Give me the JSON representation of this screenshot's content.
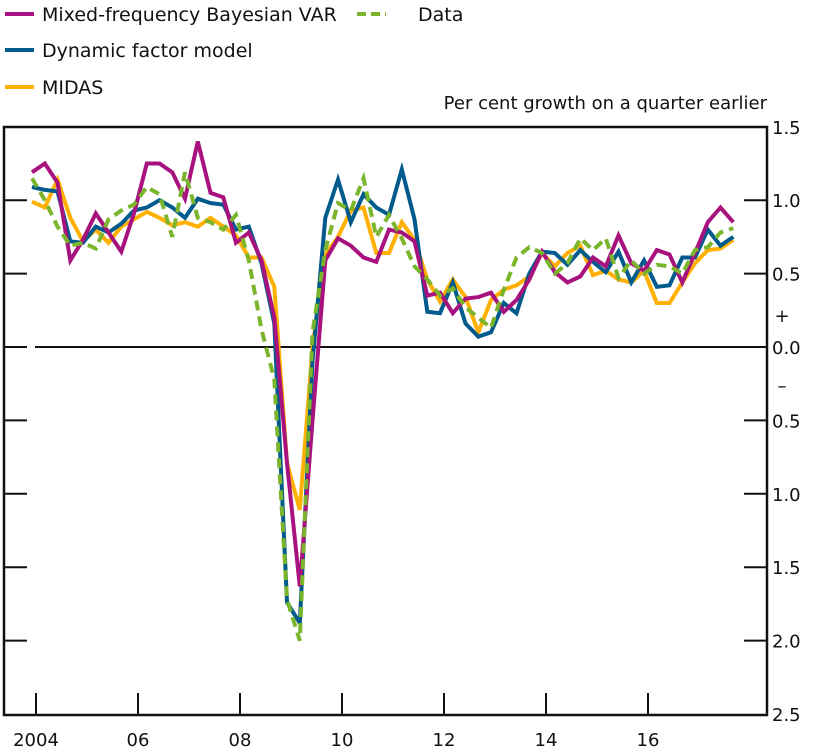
{
  "chart_data": {
    "type": "line",
    "title": "",
    "xlabel": "",
    "ylabel": "Per cent growth on a quarter earlier",
    "ylim": [
      -2.5,
      1.5
    ],
    "grid": false,
    "legend_position": "top-left",
    "x": [
      "2003 Q4",
      "2004 Q1",
      "2004 Q2",
      "2004 Q3",
      "2004 Q4",
      "2005 Q1",
      "2005 Q2",
      "2005 Q3",
      "2005 Q4",
      "2006 Q1",
      "2006 Q2",
      "2006 Q3",
      "2006 Q4",
      "2007 Q1",
      "2007 Q2",
      "2007 Q3",
      "2007 Q4",
      "2008 Q1",
      "2008 Q2",
      "2008 Q3",
      "2008 Q4",
      "2009 Q1",
      "2009 Q2",
      "2009 Q3",
      "2009 Q4",
      "2010 Q1",
      "2010 Q2",
      "2010 Q3",
      "2010 Q4",
      "2011 Q1",
      "2011 Q2",
      "2011 Q3",
      "2011 Q4",
      "2012 Q1",
      "2012 Q2",
      "2012 Q3",
      "2012 Q4",
      "2013 Q1",
      "2013 Q2",
      "2013 Q3",
      "2013 Q4",
      "2014 Q1",
      "2014 Q2",
      "2014 Q3",
      "2014 Q4",
      "2015 Q1",
      "2015 Q2",
      "2015 Q3",
      "2015 Q4",
      "2016 Q1",
      "2016 Q2",
      "2016 Q3",
      "2016 Q4",
      "2017 Q1",
      "2017 Q2",
      "2017 Q3"
    ],
    "xtick_years": [
      2004,
      2006,
      2008,
      2010,
      2012,
      2014,
      2016
    ],
    "xtick_labels": [
      "2004",
      "06",
      "08",
      "10",
      "12",
      "14",
      "16"
    ],
    "yticks": [
      1.5,
      1.0,
      0.5,
      0.0,
      -0.5,
      -1.0,
      -1.5,
      -2.0,
      -2.5
    ],
    "ytick_labels": [
      "1.5",
      "1.0",
      "0.5",
      "0.0",
      "0.5",
      "1.0",
      "1.5",
      "2.0",
      "2.5"
    ],
    "sign_labels": {
      "plus": "+",
      "minus": "–"
    },
    "series": [
      {
        "name": "Mixed-frequency Bayesian VAR",
        "color": "#A8127E",
        "style": "solid",
        "values": [
          1.19,
          1.25,
          1.12,
          0.59,
          0.73,
          0.91,
          0.78,
          0.65,
          0.91,
          1.25,
          1.25,
          1.19,
          1.01,
          1.4,
          1.05,
          1.02,
          0.71,
          0.78,
          0.59,
          0.2,
          -0.79,
          -1.63,
          -0.5,
          0.59,
          0.74,
          0.69,
          0.61,
          0.58,
          0.8,
          0.78,
          0.72,
          0.35,
          0.37,
          0.23,
          0.33,
          0.34,
          0.37,
          0.24,
          0.32,
          0.46,
          0.65,
          0.51,
          0.44,
          0.48,
          0.61,
          0.55,
          0.76,
          0.57,
          0.52,
          0.66,
          0.63,
          0.44,
          0.64,
          0.85,
          0.95,
          0.85
        ]
      },
      {
        "name": "Data",
        "color": "#7AB52C",
        "style": "dashed",
        "values": [
          1.15,
          1.0,
          0.82,
          0.69,
          0.71,
          0.67,
          0.87,
          0.93,
          0.97,
          1.09,
          1.04,
          0.75,
          1.19,
          0.88,
          0.85,
          0.8,
          0.9,
          0.59,
          0.12,
          -0.22,
          -1.72,
          -2.0,
          0.1,
          0.66,
          0.98,
          0.93,
          1.15,
          0.75,
          0.9,
          0.74,
          0.55,
          0.46,
          0.35,
          0.4,
          0.27,
          0.2,
          0.13,
          0.39,
          0.61,
          0.68,
          0.64,
          0.5,
          0.57,
          0.74,
          0.66,
          0.74,
          0.47,
          0.59,
          0.5,
          0.56,
          0.55,
          0.5,
          0.66,
          0.68,
          0.78,
          0.81
        ]
      },
      {
        "name": "Dynamic factor model",
        "color": "#005A8C",
        "style": "solid",
        "values": [
          1.09,
          1.07,
          1.06,
          0.72,
          0.71,
          0.82,
          0.78,
          0.84,
          0.93,
          0.95,
          1.0,
          0.95,
          0.88,
          1.01,
          0.98,
          0.97,
          0.8,
          0.82,
          0.57,
          0.16,
          -1.74,
          -1.88,
          -0.1,
          0.88,
          1.14,
          0.85,
          1.04,
          0.95,
          0.9,
          1.21,
          0.87,
          0.24,
          0.23,
          0.44,
          0.16,
          0.07,
          0.1,
          0.3,
          0.23,
          0.5,
          0.65,
          0.64,
          0.56,
          0.66,
          0.58,
          0.51,
          0.65,
          0.44,
          0.59,
          0.41,
          0.42,
          0.61,
          0.61,
          0.8,
          0.69,
          0.75
        ]
      },
      {
        "name": "MIDAS",
        "color": "#FFB000",
        "style": "solid",
        "values": [
          0.99,
          0.95,
          1.14,
          0.88,
          0.72,
          0.8,
          0.71,
          0.82,
          0.87,
          0.92,
          0.88,
          0.83,
          0.85,
          0.82,
          0.88,
          0.82,
          0.76,
          0.61,
          0.61,
          0.41,
          -0.79,
          -1.11,
          0.0,
          0.63,
          0.75,
          0.93,
          0.95,
          0.64,
          0.64,
          0.85,
          0.73,
          0.46,
          0.31,
          0.46,
          0.34,
          0.1,
          0.32,
          0.39,
          0.42,
          0.48,
          0.64,
          0.55,
          0.64,
          0.69,
          0.49,
          0.52,
          0.46,
          0.44,
          0.52,
          0.3,
          0.3,
          0.44,
          0.57,
          0.66,
          0.67,
          0.73
        ]
      }
    ]
  }
}
